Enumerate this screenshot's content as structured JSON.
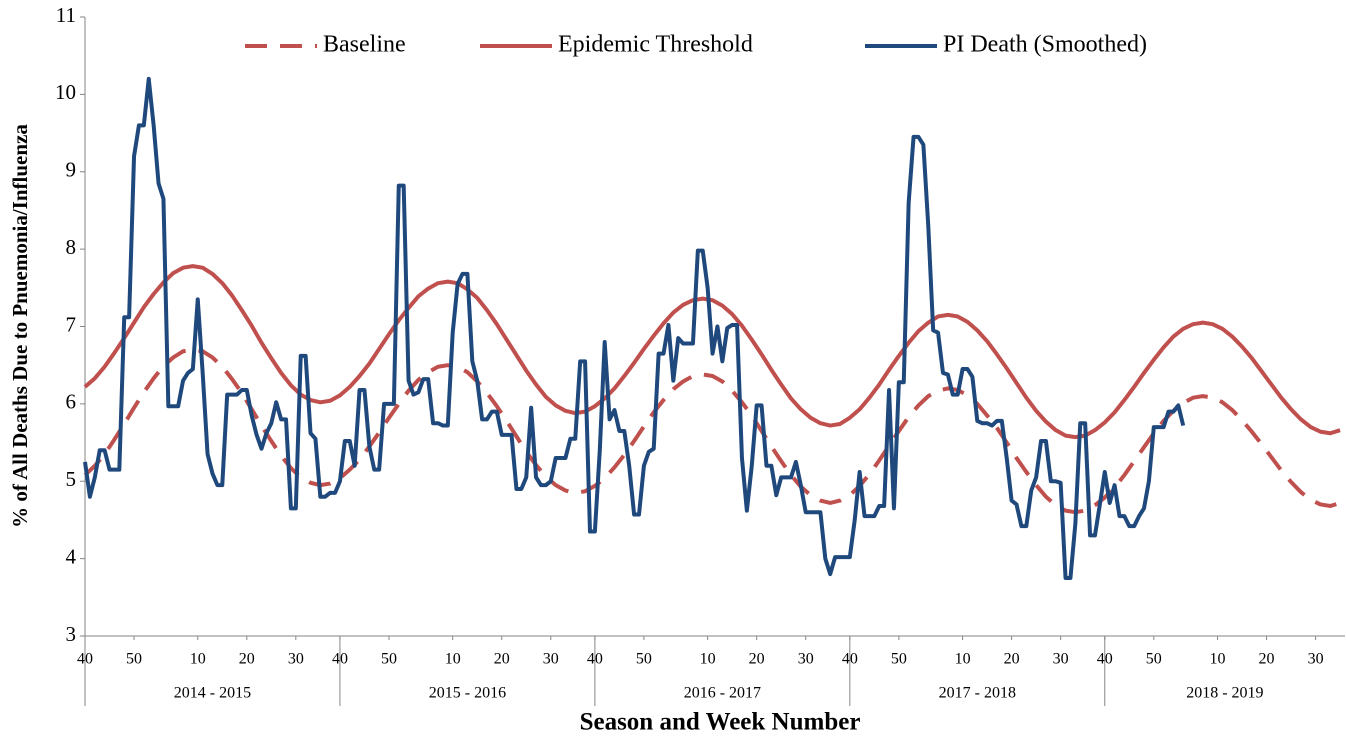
{
  "chart_data": {
    "type": "line",
    "x_axis_label": "Season and Week Number",
    "y_axis_label": "% of All Deaths Due to Pnuemonia/Influenza",
    "ylim": [
      3,
      11
    ],
    "yticks": [
      3,
      4,
      5,
      6,
      7,
      8,
      9,
      10,
      11
    ],
    "xlim": [
      0,
      257
    ],
    "xticks": [
      {
        "value": 0,
        "label": "40"
      },
      {
        "value": 10,
        "label": "50"
      },
      {
        "value": 23,
        "label": "10"
      },
      {
        "value": 33,
        "label": "20"
      },
      {
        "value": 43,
        "label": "30"
      },
      {
        "value": 52,
        "label": "40"
      },
      {
        "value": 62,
        "label": "50"
      },
      {
        "value": 75,
        "label": "10"
      },
      {
        "value": 85,
        "label": "20"
      },
      {
        "value": 95,
        "label": "30"
      },
      {
        "value": 104,
        "label": "40"
      },
      {
        "value": 114,
        "label": "50"
      },
      {
        "value": 127,
        "label": "10"
      },
      {
        "value": 137,
        "label": "20"
      },
      {
        "value": 147,
        "label": "30"
      },
      {
        "value": 156,
        "label": "40"
      },
      {
        "value": 166,
        "label": "50"
      },
      {
        "value": 179,
        "label": "10"
      },
      {
        "value": 189,
        "label": "20"
      },
      {
        "value": 199,
        "label": "30"
      },
      {
        "value": 208,
        "label": "40"
      },
      {
        "value": 218,
        "label": "50"
      },
      {
        "value": 231,
        "label": "10"
      },
      {
        "value": 241,
        "label": "20"
      },
      {
        "value": 251,
        "label": "30"
      }
    ],
    "groups": [
      {
        "label": "2014 - 2015",
        "range": [
          0,
          52
        ]
      },
      {
        "label": "2015 - 2016",
        "range": [
          52,
          104
        ]
      },
      {
        "label": "2016 - 2017",
        "range": [
          104,
          156
        ]
      },
      {
        "label": "2017 - 2018",
        "range": [
          156,
          208
        ]
      },
      {
        "label": "2018 - 2019",
        "range": [
          208,
          257
        ]
      }
    ],
    "legend": "top",
    "grid": false,
    "series": [
      {
        "name": "Baseline",
        "color": "#c0504d",
        "style": "dashed",
        "x": [
          0,
          2,
          4,
          6,
          8,
          10,
          12,
          14,
          16,
          18,
          20,
          22,
          24,
          26,
          28,
          30,
          32,
          34,
          36,
          38,
          40,
          42,
          44,
          46,
          48,
          50,
          52,
          54,
          56,
          58,
          60,
          62,
          64,
          66,
          68,
          70,
          72,
          74,
          76,
          78,
          80,
          82,
          84,
          86,
          88,
          90,
          92,
          94,
          96,
          98,
          100,
          102,
          104,
          106,
          108,
          110,
          112,
          114,
          116,
          118,
          120,
          122,
          124,
          126,
          128,
          130,
          132,
          134,
          136,
          138,
          140,
          142,
          144,
          146,
          148,
          150,
          152,
          154,
          156,
          158,
          160,
          162,
          164,
          166,
          168,
          170,
          172,
          174,
          176,
          178,
          180,
          182,
          184,
          186,
          188,
          190,
          192,
          194,
          196,
          198,
          200,
          202,
          204,
          206,
          208,
          210,
          212,
          214,
          216,
          218,
          220,
          222,
          224,
          226,
          228,
          230,
          232,
          234,
          236,
          238,
          240,
          242,
          244,
          246,
          248,
          250,
          252,
          254,
          256
        ],
        "values": [
          5.08,
          5.2,
          5.35,
          5.54,
          5.74,
          5.95,
          6.15,
          6.33,
          6.49,
          6.6,
          6.68,
          6.7,
          6.68,
          6.6,
          6.48,
          6.32,
          6.14,
          5.93,
          5.72,
          5.52,
          5.33,
          5.17,
          5.05,
          4.98,
          4.95,
          4.97,
          5.04,
          5.15,
          5.28,
          5.45,
          5.63,
          5.82,
          6.0,
          6.17,
          6.31,
          6.41,
          6.48,
          6.5,
          6.48,
          6.41,
          6.29,
          6.14,
          5.97,
          5.78,
          5.58,
          5.38,
          5.21,
          5.06,
          4.95,
          4.88,
          4.85,
          4.87,
          4.94,
          5.04,
          5.18,
          5.34,
          5.52,
          5.71,
          5.89,
          6.05,
          6.19,
          6.29,
          6.36,
          6.38,
          6.36,
          6.29,
          6.17,
          6.02,
          5.85,
          5.65,
          5.45,
          5.26,
          5.08,
          4.93,
          4.82,
          4.75,
          4.72,
          4.75,
          4.82,
          4.94,
          5.09,
          5.27,
          5.46,
          5.65,
          5.83,
          5.98,
          6.1,
          6.17,
          6.2,
          6.18,
          6.11,
          6.0,
          5.85,
          5.69,
          5.5,
          5.3,
          5.12,
          4.95,
          4.8,
          4.69,
          4.62,
          4.6,
          4.62,
          4.69,
          4.79,
          4.92,
          5.08,
          5.26,
          5.44,
          5.62,
          5.78,
          5.91,
          6.01,
          6.08,
          6.1,
          6.08,
          6.02,
          5.92,
          5.79,
          5.64,
          5.48,
          5.31,
          5.14,
          4.99,
          4.86,
          4.76,
          4.7,
          4.68,
          4.72
        ]
      },
      {
        "name": "Epidemic Threshold",
        "color": "#c0504d",
        "style": "solid",
        "x": [
          0,
          2,
          4,
          6,
          8,
          10,
          12,
          14,
          16,
          18,
          20,
          22,
          24,
          26,
          28,
          30,
          32,
          34,
          36,
          38,
          40,
          42,
          44,
          46,
          48,
          50,
          52,
          54,
          56,
          58,
          60,
          62,
          64,
          66,
          68,
          70,
          72,
          74,
          76,
          78,
          80,
          82,
          84,
          86,
          88,
          90,
          92,
          94,
          96,
          98,
          100,
          102,
          104,
          106,
          108,
          110,
          112,
          114,
          116,
          118,
          120,
          122,
          124,
          126,
          128,
          130,
          132,
          134,
          136,
          138,
          140,
          142,
          144,
          146,
          148,
          150,
          152,
          154,
          156,
          158,
          160,
          162,
          164,
          166,
          168,
          170,
          172,
          174,
          176,
          178,
          180,
          182,
          184,
          186,
          188,
          190,
          192,
          194,
          196,
          198,
          200,
          202,
          204,
          206,
          208,
          210,
          212,
          214,
          216,
          218,
          220,
          222,
          224,
          226,
          228,
          230,
          232,
          234,
          236,
          238,
          240,
          242,
          244,
          246,
          248,
          250,
          252,
          254,
          256
        ],
        "values": [
          6.22,
          6.33,
          6.48,
          6.66,
          6.85,
          7.05,
          7.25,
          7.42,
          7.57,
          7.69,
          7.76,
          7.78,
          7.76,
          7.68,
          7.56,
          7.4,
          7.21,
          7.01,
          6.79,
          6.59,
          6.4,
          6.24,
          6.12,
          6.05,
          6.02,
          6.04,
          6.11,
          6.22,
          6.36,
          6.52,
          6.71,
          6.9,
          7.08,
          7.24,
          7.39,
          7.49,
          7.56,
          7.58,
          7.56,
          7.48,
          7.37,
          7.21,
          7.03,
          6.83,
          6.63,
          6.43,
          6.25,
          6.09,
          5.98,
          5.91,
          5.88,
          5.9,
          5.97,
          6.07,
          6.2,
          6.36,
          6.53,
          6.71,
          6.88,
          7.04,
          7.18,
          7.28,
          7.34,
          7.36,
          7.34,
          7.27,
          7.16,
          7.01,
          6.83,
          6.64,
          6.44,
          6.25,
          6.07,
          5.93,
          5.82,
          5.75,
          5.72,
          5.74,
          5.82,
          5.93,
          6.08,
          6.25,
          6.44,
          6.62,
          6.79,
          6.94,
          7.05,
          7.13,
          7.15,
          7.13,
          7.06,
          6.95,
          6.81,
          6.64,
          6.46,
          6.27,
          6.08,
          5.91,
          5.77,
          5.66,
          5.59,
          5.57,
          5.59,
          5.66,
          5.76,
          5.89,
          6.05,
          6.22,
          6.4,
          6.57,
          6.73,
          6.87,
          6.97,
          7.03,
          7.05,
          7.03,
          6.97,
          6.87,
          6.74,
          6.59,
          6.42,
          6.25,
          6.08,
          5.93,
          5.8,
          5.7,
          5.64,
          5.62,
          5.66
        ]
      },
      {
        "name": "PI Death (Smoothed)",
        "color": "#1f497d",
        "style": "solid",
        "x": [
          0,
          1,
          2,
          3,
          4,
          5,
          6,
          7,
          8,
          9,
          10,
          11,
          12,
          13,
          14,
          15,
          16,
          17,
          18,
          19,
          20,
          21,
          22,
          23,
          24,
          25,
          26,
          27,
          28,
          29,
          30,
          31,
          32,
          33,
          34,
          35,
          36,
          37,
          38,
          39,
          40,
          41,
          42,
          43,
          44,
          45,
          46,
          47,
          48,
          49,
          50,
          51,
          52,
          53,
          54,
          55,
          56,
          57,
          58,
          59,
          60,
          61,
          62,
          63,
          64,
          65,
          66,
          67,
          68,
          69,
          70,
          71,
          72,
          73,
          74,
          75,
          76,
          77,
          78,
          79,
          80,
          81,
          82,
          83,
          84,
          85,
          86,
          87,
          88,
          89,
          90,
          91,
          92,
          93,
          94,
          95,
          96,
          97,
          98,
          99,
          100,
          101,
          102,
          103,
          104,
          105,
          106,
          107,
          108,
          109,
          110,
          111,
          112,
          113,
          114,
          115,
          116,
          117,
          118,
          119,
          120,
          121,
          122,
          123,
          124,
          125,
          126,
          127,
          128,
          129,
          130,
          131,
          132,
          133,
          134,
          135,
          136,
          137,
          138,
          139,
          140,
          141,
          142,
          143,
          144,
          145,
          146,
          147,
          148,
          149,
          150,
          151,
          152,
          153,
          154,
          155,
          156,
          157,
          158,
          159,
          160,
          161,
          162,
          163,
          164,
          165,
          166,
          167,
          168,
          169,
          170,
          171,
          172,
          173,
          174,
          175,
          176,
          177,
          178,
          179,
          180,
          181,
          182,
          183,
          184,
          185,
          186,
          187,
          188,
          189,
          190,
          191,
          192,
          193,
          194,
          195,
          196,
          197,
          198,
          199,
          200,
          201,
          202,
          203,
          204,
          205,
          206,
          207,
          208,
          209,
          210,
          211,
          212,
          213,
          214,
          215,
          216,
          217,
          218,
          219,
          220,
          221,
          222,
          223,
          224
        ],
        "values": [
          5.25,
          4.8,
          5.05,
          5.4,
          5.4,
          5.15,
          5.15,
          5.15,
          7.12,
          7.12,
          9.2,
          9.6,
          9.6,
          10.2,
          9.6,
          8.85,
          8.65,
          5.97,
          5.97,
          5.97,
          6.3,
          6.4,
          6.45,
          7.35,
          6.4,
          5.35,
          5.1,
          4.95,
          4.95,
          6.12,
          6.12,
          6.12,
          6.18,
          6.18,
          5.85,
          5.6,
          5.42,
          5.62,
          5.75,
          6.02,
          5.8,
          5.8,
          4.65,
          4.65,
          6.62,
          6.62,
          5.62,
          5.55,
          4.8,
          4.8,
          4.85,
          4.85,
          5.0,
          5.52,
          5.52,
          5.2,
          6.18,
          6.18,
          5.45,
          5.15,
          5.15,
          6.0,
          6.0,
          6.0,
          8.82,
          8.82,
          6.3,
          6.12,
          6.15,
          6.32,
          6.32,
          5.75,
          5.75,
          5.72,
          5.72,
          6.92,
          7.55,
          7.68,
          7.68,
          6.55,
          6.3,
          5.8,
          5.8,
          5.9,
          5.9,
          5.6,
          5.6,
          5.6,
          4.9,
          4.9,
          5.05,
          5.95,
          5.05,
          4.95,
          4.95,
          5.0,
          5.3,
          5.3,
          5.3,
          5.55,
          5.55,
          6.55,
          6.55,
          4.35,
          4.35,
          5.4,
          6.8,
          5.8,
          5.92,
          5.65,
          5.65,
          5.2,
          4.57,
          4.57,
          5.2,
          5.38,
          5.42,
          6.65,
          6.65,
          7.02,
          6.3,
          6.85,
          6.78,
          6.78,
          6.78,
          7.98,
          7.98,
          7.5,
          6.65,
          7.0,
          6.55,
          6.98,
          7.02,
          7.02,
          5.3,
          4.62,
          5.2,
          5.98,
          5.98,
          5.2,
          5.2,
          4.82,
          5.05,
          5.05,
          5.05,
          5.25,
          4.95,
          4.6,
          4.6,
          4.6,
          4.6,
          4.0,
          3.8,
          4.02,
          4.02,
          4.02,
          4.02,
          4.5,
          5.12,
          4.55,
          4.55,
          4.55,
          4.68,
          4.68,
          6.18,
          4.65,
          6.28,
          6.28,
          8.6,
          9.45,
          9.45,
          9.35,
          8.3,
          6.95,
          6.92,
          6.4,
          6.38,
          6.12,
          6.12,
          6.45,
          6.45,
          6.35,
          5.78,
          5.75,
          5.75,
          5.72,
          5.78,
          5.78,
          5.3,
          4.75,
          4.7,
          4.42,
          4.42,
          4.88,
          5.05,
          5.52,
          5.52,
          5.0,
          5.0,
          4.98,
          3.75,
          3.75,
          4.45,
          5.75,
          5.75,
          4.3,
          4.3,
          4.7,
          5.12,
          4.72,
          4.95,
          4.55,
          4.55,
          4.42,
          4.42,
          4.55,
          4.65,
          5.0,
          5.7,
          5.7,
          5.7,
          5.9,
          5.9,
          5.98,
          5.72
        ]
      }
    ]
  }
}
